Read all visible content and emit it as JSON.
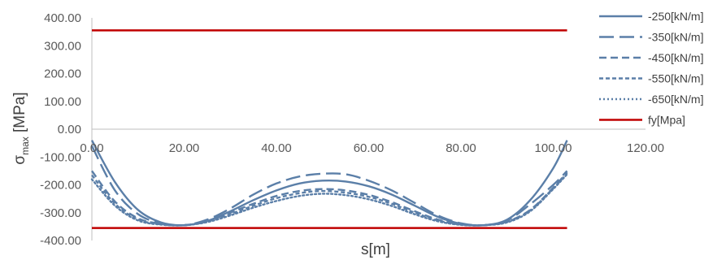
{
  "chart_data": {
    "type": "line",
    "xlabel": "s[m]",
    "ylabel_main": "σ",
    "ylabel_sub": "max",
    "ylabel_suffix": " [MPa]",
    "xlim": [
      0,
      120
    ],
    "ylim": [
      -400,
      400
    ],
    "x_ticks": [
      "0.00",
      "20.00",
      "40.00",
      "60.00",
      "80.00",
      "100.00",
      "120.00"
    ],
    "y_ticks": [
      "400.00",
      "300.00",
      "200.00",
      "100.00",
      "0.00",
      "-100.00",
      "-200.00",
      "-300.00",
      "-400.00"
    ],
    "grid": false,
    "legend": "right",
    "series": [
      {
        "name": "-250[kN/m]",
        "color": "#5b7fa8",
        "style": "solid",
        "x": [
          0,
          5,
          10,
          15,
          20,
          25,
          30,
          35,
          40,
          45,
          50,
          55,
          60,
          65,
          70,
          75,
          80,
          85,
          90,
          95,
          100,
          103
        ],
        "y": [
          -40,
          -190,
          -290,
          -335,
          -345,
          -330,
          -295,
          -255,
          -220,
          -195,
          -185,
          -188,
          -205,
          -235,
          -275,
          -315,
          -340,
          -345,
          -325,
          -255,
          -140,
          -40
        ]
      },
      {
        "name": "-350[kN/m]",
        "color": "#5b7fa8",
        "style": "longdash",
        "x": [
          0,
          5,
          10,
          15,
          20,
          25,
          30,
          35,
          40,
          45,
          50,
          55,
          60,
          65,
          70,
          75,
          80,
          85,
          90,
          95,
          100,
          103
        ],
        "y": [
          -60,
          -220,
          -305,
          -338,
          -345,
          -325,
          -285,
          -235,
          -195,
          -170,
          -160,
          -162,
          -185,
          -220,
          -265,
          -310,
          -338,
          -345,
          -328,
          -270,
          -200,
          -150
        ]
      },
      {
        "name": "-450[kN/m]",
        "color": "#5b7fa8",
        "style": "dash",
        "x": [
          0,
          5,
          10,
          15,
          20,
          25,
          30,
          35,
          40,
          45,
          50,
          55,
          60,
          65,
          70,
          75,
          80,
          85,
          90,
          95,
          100,
          103
        ],
        "y": [
          -150,
          -260,
          -320,
          -340,
          -345,
          -330,
          -300,
          -268,
          -240,
          -222,
          -215,
          -220,
          -236,
          -262,
          -295,
          -325,
          -342,
          -345,
          -332,
          -290,
          -210,
          -155
        ]
      },
      {
        "name": "-550[kN/m]",
        "color": "#5b7fa8",
        "style": "shortdash",
        "x": [
          0,
          5,
          10,
          15,
          20,
          25,
          30,
          35,
          40,
          45,
          50,
          55,
          60,
          65,
          70,
          75,
          80,
          85,
          90,
          95,
          100,
          103
        ],
        "y": [
          -165,
          -268,
          -324,
          -342,
          -345,
          -332,
          -305,
          -275,
          -248,
          -230,
          -222,
          -228,
          -243,
          -268,
          -300,
          -328,
          -343,
          -345,
          -333,
          -292,
          -212,
          -158
        ]
      },
      {
        "name": "-650[kN/m]",
        "color": "#5b7fa8",
        "style": "dot",
        "x": [
          0,
          5,
          10,
          15,
          20,
          25,
          30,
          35,
          40,
          45,
          50,
          55,
          60,
          65,
          70,
          75,
          80,
          85,
          90,
          95,
          100,
          103
        ],
        "y": [
          -180,
          -275,
          -328,
          -343,
          -345,
          -334,
          -310,
          -282,
          -258,
          -240,
          -232,
          -237,
          -252,
          -276,
          -306,
          -331,
          -344,
          -345,
          -335,
          -295,
          -215,
          -162
        ]
      },
      {
        "name": "fy[Mpa]",
        "color": "#c00000",
        "style": "solid",
        "x": [
          0,
          103
        ],
        "y": [
          355,
          355
        ]
      },
      {
        "name": "",
        "color": "#c00000",
        "style": "solid",
        "x": [
          0,
          103
        ],
        "y": [
          -355,
          -355
        ]
      }
    ]
  }
}
